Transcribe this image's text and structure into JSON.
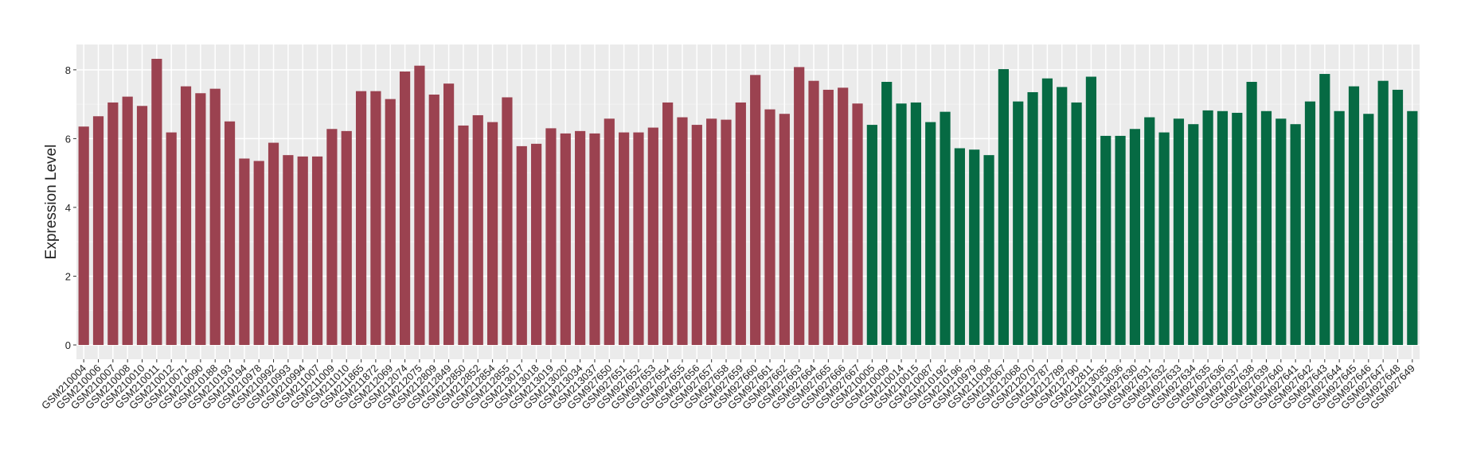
{
  "chart_data": {
    "type": "bar",
    "y_label": "Expression Level",
    "categories": [
      "GSM210004",
      "GSM210006",
      "GSM210007",
      "GSM210008",
      "GSM210010",
      "GSM210011",
      "GSM210012",
      "GSM210071",
      "GSM210090",
      "GSM210188",
      "GSM210193",
      "GSM210194",
      "GSM210978",
      "GSM210992",
      "GSM210993",
      "GSM210994",
      "GSM211007",
      "GSM211009",
      "GSM211010",
      "GSM211865",
      "GSM211872",
      "GSM212069",
      "GSM212074",
      "GSM212075",
      "GSM212809",
      "GSM212849",
      "GSM212850",
      "GSM212852",
      "GSM212854",
      "GSM212855",
      "GSM213017",
      "GSM213018",
      "GSM213019",
      "GSM213020",
      "GSM213034",
      "GSM213037",
      "GSM927650",
      "GSM927651",
      "GSM927652",
      "GSM927653",
      "GSM927654",
      "GSM927655",
      "GSM927656",
      "GSM927657",
      "GSM927658",
      "GSM927659",
      "GSM927660",
      "GSM927661",
      "GSM927662",
      "GSM927663",
      "GSM927664",
      "GSM927665",
      "GSM927666",
      "GSM927667",
      "GSM210005",
      "GSM210009",
      "GSM210014",
      "GSM210015",
      "GSM210087",
      "GSM210192",
      "GSM210196",
      "GSM210979",
      "GSM211008",
      "GSM212067",
      "GSM212068",
      "GSM212070",
      "GSM212787",
      "GSM212789",
      "GSM212790",
      "GSM212811",
      "GSM213035",
      "GSM213036",
      "GSM927630",
      "GSM927631",
      "GSM927632",
      "GSM927633",
      "GSM927634",
      "GSM927635",
      "GSM927636",
      "GSM927637",
      "GSM927638",
      "GSM927639",
      "GSM927640",
      "GSM927641",
      "GSM927642",
      "GSM927643",
      "GSM927644",
      "GSM927645",
      "GSM927646",
      "GSM927647",
      "GSM927648",
      "GSM927649"
    ],
    "values": [
      6.35,
      6.65,
      7.05,
      7.22,
      6.95,
      8.32,
      6.18,
      7.52,
      7.32,
      7.45,
      6.5,
      5.42,
      5.35,
      5.88,
      5.52,
      5.48,
      5.48,
      6.28,
      6.22,
      7.38,
      7.38,
      7.15,
      7.95,
      8.12,
      7.28,
      7.6,
      6.38,
      6.68,
      6.48,
      7.2,
      5.78,
      5.85,
      6.3,
      6.15,
      6.22,
      6.15,
      6.58,
      6.18,
      6.18,
      6.32,
      7.05,
      6.62,
      6.4,
      6.58,
      6.55,
      7.05,
      7.85,
      6.85,
      6.72,
      8.08,
      7.68,
      7.42,
      7.48,
      7.02,
      6.4,
      7.65,
      7.02,
      7.05,
      6.48,
      6.78,
      5.72,
      5.68,
      5.52,
      8.02,
      7.08,
      7.35,
      7.75,
      7.5,
      7.05,
      7.8,
      6.08,
      6.08,
      6.28,
      6.62,
      6.18,
      6.58,
      6.42,
      6.82,
      6.8,
      6.75,
      7.65,
      6.8,
      6.58,
      6.42,
      7.08,
      7.88,
      6.8,
      7.52,
      6.72,
      7.68,
      7.42,
      6.8
    ],
    "colors": [
      "#9b4250",
      "#9b4250",
      "#9b4250",
      "#9b4250",
      "#9b4250",
      "#9b4250",
      "#9b4250",
      "#9b4250",
      "#9b4250",
      "#9b4250",
      "#9b4250",
      "#9b4250",
      "#9b4250",
      "#9b4250",
      "#9b4250",
      "#9b4250",
      "#9b4250",
      "#9b4250",
      "#9b4250",
      "#9b4250",
      "#9b4250",
      "#9b4250",
      "#9b4250",
      "#9b4250",
      "#9b4250",
      "#9b4250",
      "#9b4250",
      "#9b4250",
      "#9b4250",
      "#9b4250",
      "#9b4250",
      "#9b4250",
      "#9b4250",
      "#9b4250",
      "#9b4250",
      "#9b4250",
      "#9b4250",
      "#9b4250",
      "#9b4250",
      "#9b4250",
      "#9b4250",
      "#9b4250",
      "#9b4250",
      "#9b4250",
      "#9b4250",
      "#9b4250",
      "#9b4250",
      "#9b4250",
      "#9b4250",
      "#9b4250",
      "#9b4250",
      "#9b4250",
      "#9b4250",
      "#9b4250",
      "#066a43",
      "#066a43",
      "#066a43",
      "#066a43",
      "#066a43",
      "#066a43",
      "#066a43",
      "#066a43",
      "#066a43",
      "#066a43",
      "#066a43",
      "#066a43",
      "#066a43",
      "#066a43",
      "#066a43",
      "#066a43",
      "#066a43",
      "#066a43",
      "#066a43",
      "#066a43",
      "#066a43",
      "#066a43",
      "#066a43",
      "#066a43",
      "#066a43",
      "#066a43",
      "#066a43",
      "#066a43",
      "#066a43",
      "#066a43",
      "#066a43",
      "#066a43",
      "#066a43",
      "#066a43",
      "#066a43",
      "#066a43",
      "#066a43",
      "#066a43"
    ],
    "ylim": [
      -0.416,
      8.736
    ],
    "yticks": [
      0,
      2,
      4,
      6,
      8
    ],
    "grid": true
  }
}
